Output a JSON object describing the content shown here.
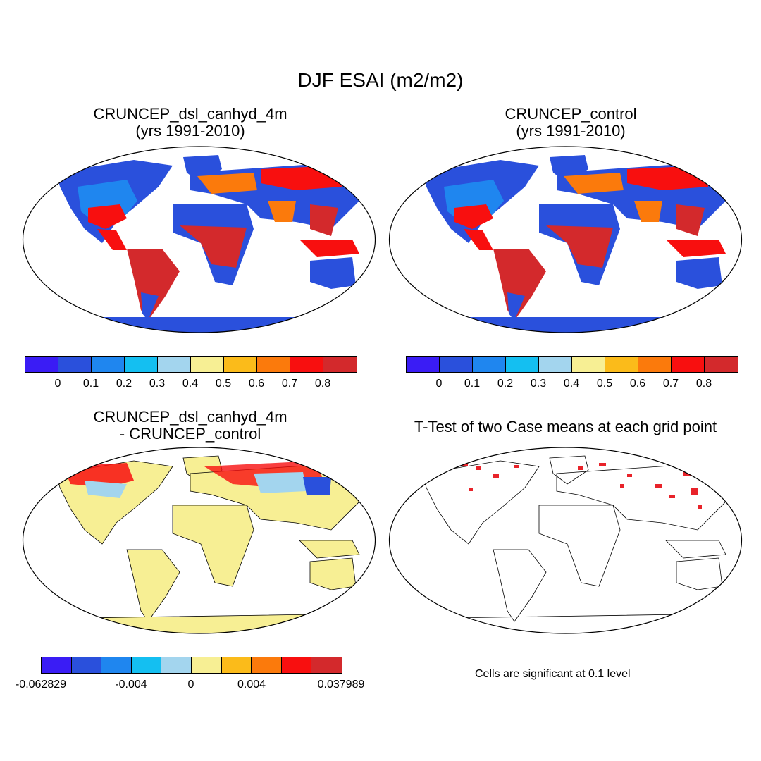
{
  "figure": {
    "title": "DJF ESAI (m2/m2)"
  },
  "panels": [
    {
      "title_line1": "CRUNCEP_dsl_canhyd_4m",
      "title_line2": "(yrs 1991-2010)"
    },
    {
      "title_line1": "CRUNCEP_control",
      "title_line2": "(yrs 1991-2010)"
    },
    {
      "title_line1": "CRUNCEP_dsl_canhyd_4m",
      "title_line2": "- CRUNCEP_control"
    },
    {
      "title_line1": "T-Test of two Case means at each grid point",
      "title_line2": ""
    }
  ],
  "colorbar_main": {
    "colors": [
      "#3a1cf5",
      "#2a50dc",
      "#1f86ef",
      "#14bff1",
      "#a3d5ee",
      "#f7ef94",
      "#fbbb1a",
      "#fb7a0c",
      "#f80f0f",
      "#d3292c"
    ],
    "labels": [
      "0",
      "0.1",
      "0.2",
      "0.3",
      "0.4",
      "0.5",
      "0.6",
      "0.7",
      "0.8"
    ]
  },
  "colorbar_diff": {
    "colors": [
      "#3a1cf5",
      "#2a50dc",
      "#1f86ef",
      "#14bff1",
      "#a3d5ee",
      "#f7ef94",
      "#fbbb1a",
      "#fb7a0c",
      "#f80f0f",
      "#d3292c"
    ],
    "labels": [
      "-0.062829",
      "-0.004",
      "0",
      "0.004",
      "0.037989"
    ]
  },
  "ttest_note": "Cells are significant at 0.1 level",
  "map_colors": {
    "ocean": "#ffffff",
    "coast": "#000000",
    "significant": "#e8232a"
  }
}
